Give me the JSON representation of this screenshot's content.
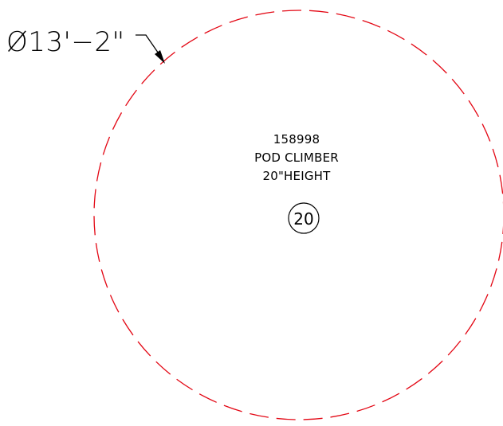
{
  "colors": {
    "background": "#ffffff",
    "boundary_stroke": "#e30613",
    "annotation": "#000000"
  },
  "dimension": {
    "label": "Ø13'−2\""
  },
  "equipment": {
    "part_number": "158998",
    "name": "POD CLIMBER",
    "height": "20\"HEIGHT"
  },
  "tag": {
    "number": "20"
  },
  "icons": {
    "leader_arrow": "arrowhead-icon",
    "tag_bubble": "circle-tag-icon"
  }
}
